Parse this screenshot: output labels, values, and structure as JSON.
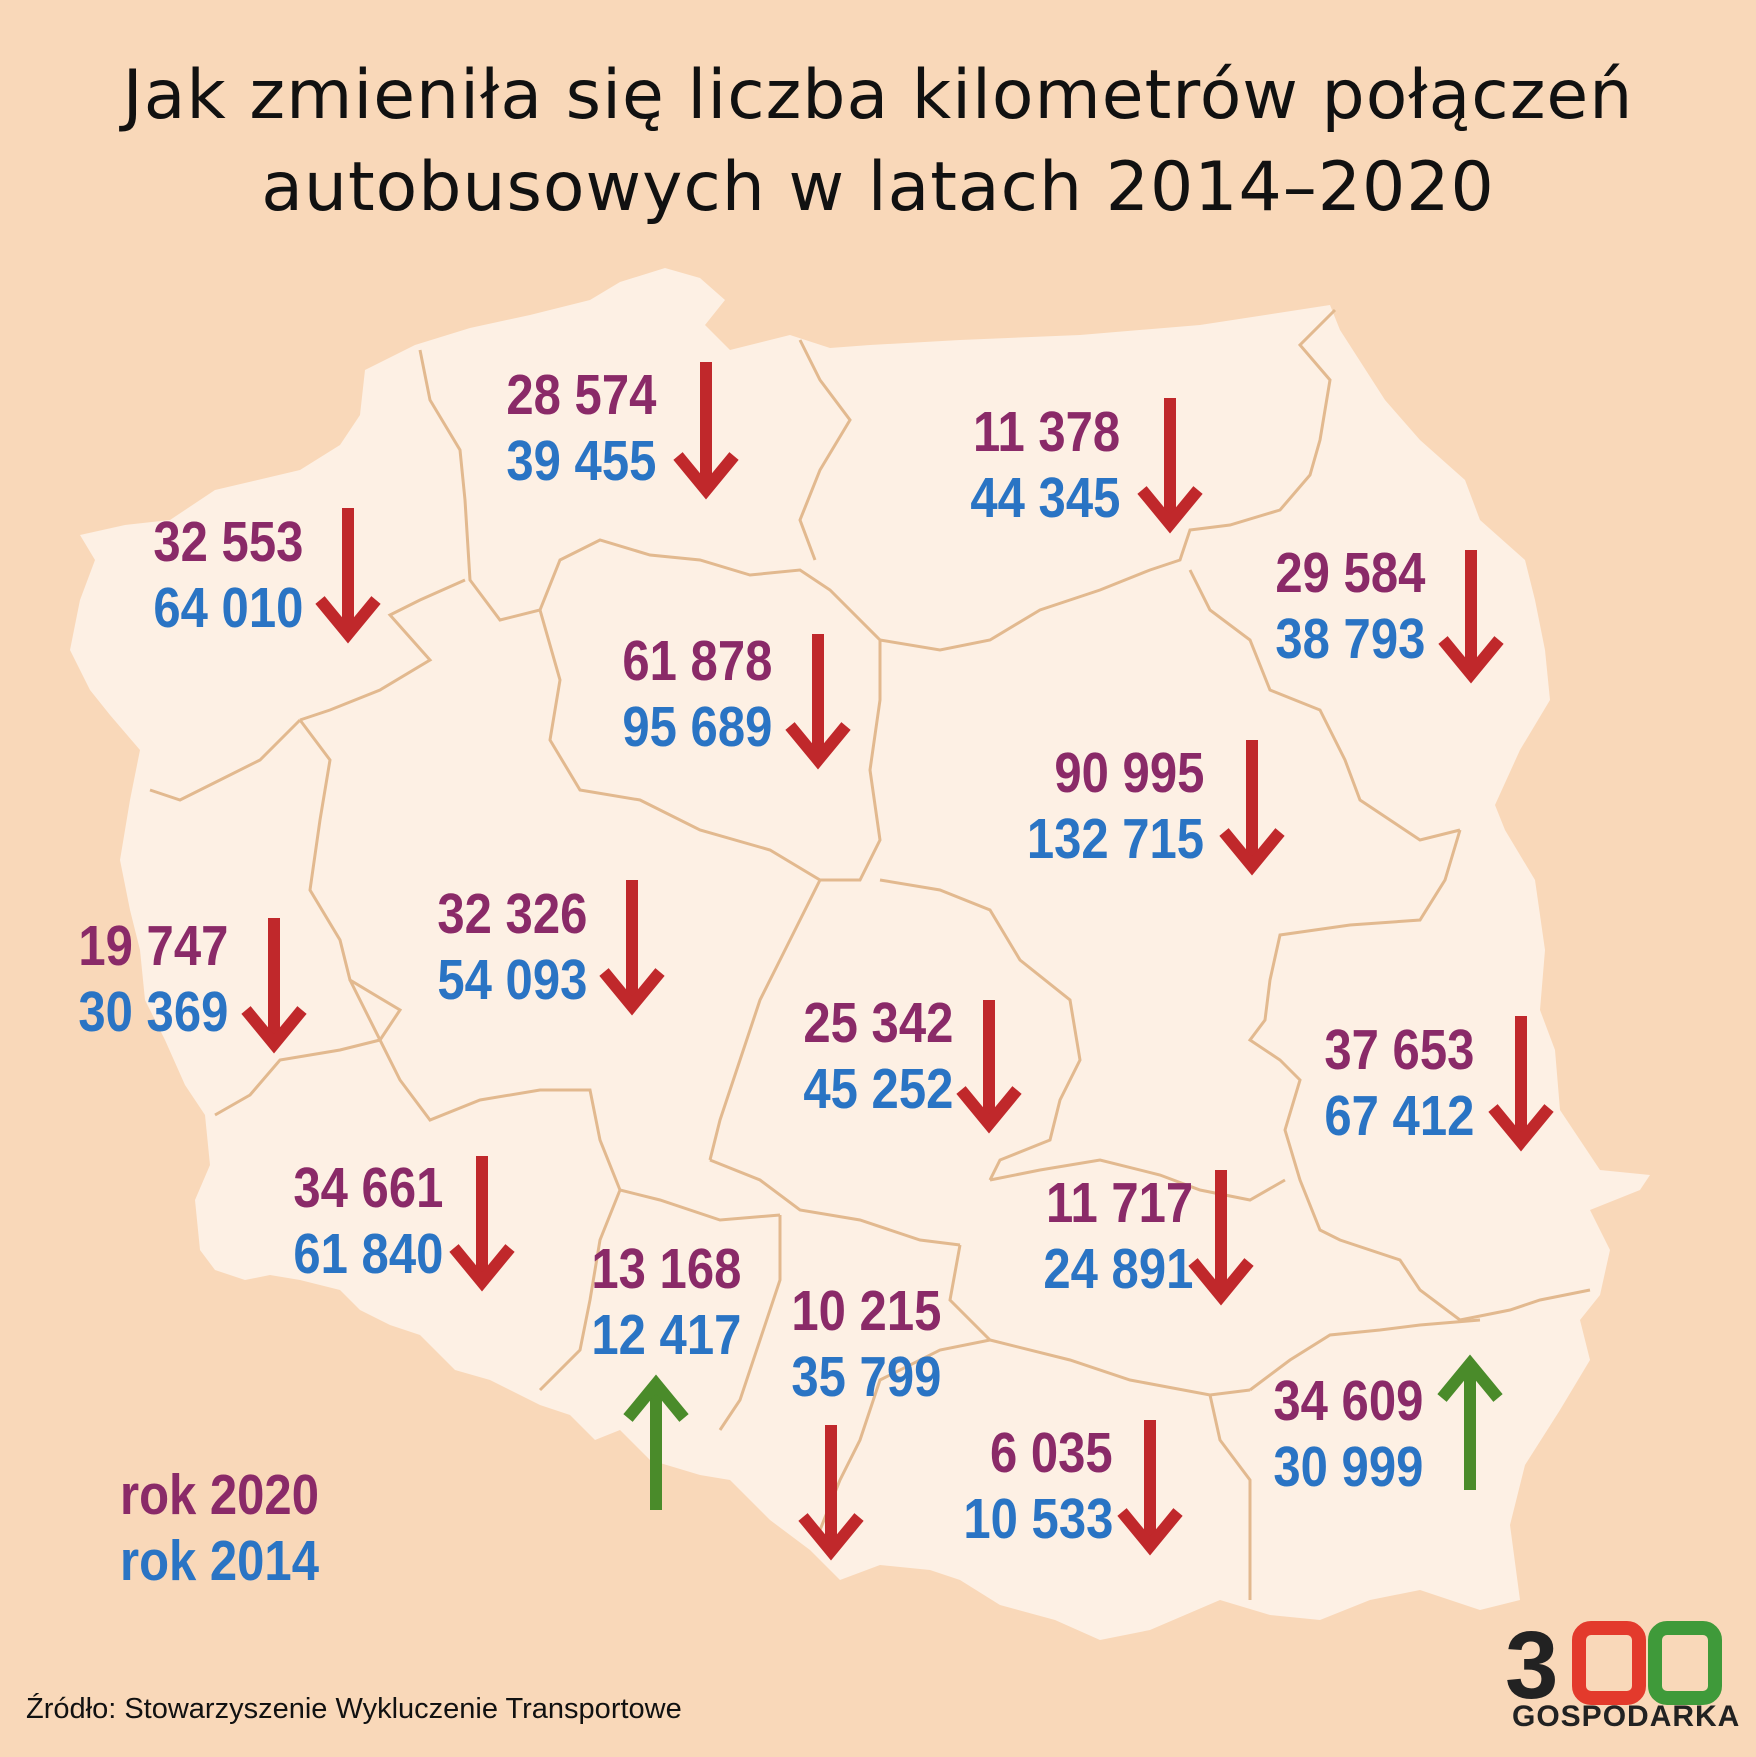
{
  "title": {
    "line1": "Jak zmieniła się liczba kilometrów połączeń",
    "line2": "autobusowych w latach 2014–2020"
  },
  "legend": {
    "year_2020": "rok 2020",
    "year_2014": "rok 2014"
  },
  "colors": {
    "background": "#f9d8b9",
    "map_fill": "#fdf0e4",
    "border": "#e2b98f",
    "value_2020": "#8a2a68",
    "value_2014": "#2a74c4",
    "arrow_down": "#c0282b",
    "arrow_up": "#4a8b2a"
  },
  "regions": [
    {
      "id": "pomorskie",
      "v2020": "28 574",
      "v2014": "39 455",
      "trend": "down"
    },
    {
      "id": "warminsko-mazurskie",
      "v2020": "11 378",
      "v2014": "44 345",
      "trend": "down"
    },
    {
      "id": "zachodniopomorskie",
      "v2020": "32 553",
      "v2014": "64 010",
      "trend": "down"
    },
    {
      "id": "podlaskie",
      "v2020": "29 584",
      "v2014": "38 793",
      "trend": "down"
    },
    {
      "id": "kujawsko-pomorskie",
      "v2020": "61 878",
      "v2014": "95 689",
      "trend": "down"
    },
    {
      "id": "mazowieckie",
      "v2020": "90 995",
      "v2014": "132 715",
      "trend": "down"
    },
    {
      "id": "wielkopolskie",
      "v2020": "32 326",
      "v2014": "54 093",
      "trend": "down"
    },
    {
      "id": "lubuskie",
      "v2020": "19 747",
      "v2014": "30 369",
      "trend": "down"
    },
    {
      "id": "lodzkie",
      "v2020": "25 342",
      "v2014": "45 252",
      "trend": "down"
    },
    {
      "id": "lubelskie",
      "v2020": "37 653",
      "v2014": "67 412",
      "trend": "down"
    },
    {
      "id": "dolnoslaskie",
      "v2020": "34 661",
      "v2014": "61 840",
      "trend": "down"
    },
    {
      "id": "swietokrzyskie",
      "v2020": "11 717",
      "v2014": "24 891",
      "trend": "down"
    },
    {
      "id": "opolskie",
      "v2020": "13 168",
      "v2014": "12 417",
      "trend": "up"
    },
    {
      "id": "slaskie",
      "v2020": "10 215",
      "v2014": "35 799",
      "trend": "down"
    },
    {
      "id": "malopolskie",
      "v2020": "6 035",
      "v2014": "10 533",
      "trend": "down"
    },
    {
      "id": "podkarpackie",
      "v2020": "34 609",
      "v2014": "30 999",
      "trend": "up"
    }
  ],
  "source": "Źródło: Stowarzyszenie Wykluczenie Transportowe",
  "logo": {
    "digits": "300",
    "word": "GOSPODARKA"
  }
}
